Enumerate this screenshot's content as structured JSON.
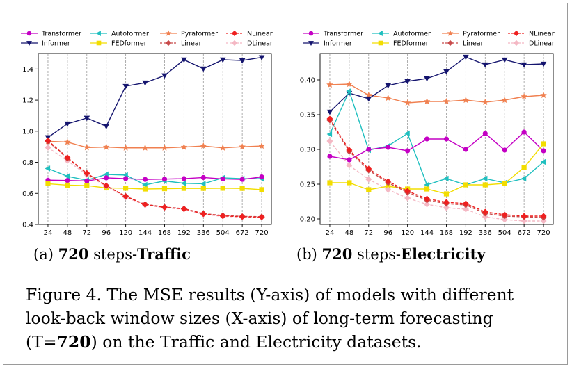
{
  "series_styles": [
    {
      "name": "Transformer",
      "color": "#c400c4",
      "marker": "circle",
      "dash": false
    },
    {
      "name": "Informer",
      "color": "#14146e",
      "marker": "triangle-down",
      "dash": false
    },
    {
      "name": "Autoformer",
      "color": "#1fbfbf",
      "marker": "triangle-left",
      "dash": false
    },
    {
      "name": "FEDformer",
      "color": "#f2dd00",
      "marker": "square",
      "dash": false
    },
    {
      "name": "Pyraformer",
      "color": "#f08050",
      "marker": "star",
      "dash": false
    },
    {
      "name": "Linear",
      "color": "#c84b4b",
      "marker": "diamond",
      "dash": true
    },
    {
      "name": "NLinear",
      "color": "#ee2020",
      "marker": "diamond",
      "dash": true
    },
    {
      "name": "DLinear",
      "color": "#f4b8c4",
      "marker": "diamond",
      "dash": true
    }
  ],
  "chart_data": [
    {
      "type": "line",
      "categories": [
        "24",
        "48",
        "72",
        "96",
        "120",
        "144",
        "168",
        "192",
        "336",
        "504",
        "672",
        "720"
      ],
      "ylim": [
        0.4,
        1.5
      ],
      "yticks": [
        0.4,
        0.6,
        0.8,
        1.0,
        1.2,
        1.4
      ],
      "ytick_labels": [
        "0.4",
        "0.6",
        "0.8",
        "1.0",
        "1.2",
        "1.4"
      ],
      "grid": "vertical dashed",
      "legend": "top, 4 columns",
      "series": [
        {
          "name": "Transformer",
          "values": [
            0.685,
            0.683,
            0.68,
            0.7,
            0.695,
            0.69,
            0.692,
            0.695,
            0.702,
            0.693,
            0.69,
            0.706
          ]
        },
        {
          "name": "Informer",
          "values": [
            0.96,
            1.048,
            1.085,
            1.032,
            1.29,
            1.312,
            1.358,
            1.46,
            1.402,
            1.46,
            1.455,
            1.475
          ]
        },
        {
          "name": "Autoformer",
          "values": [
            0.76,
            0.71,
            0.685,
            0.722,
            0.718,
            0.655,
            0.68,
            0.665,
            0.662,
            0.7,
            0.695,
            0.695
          ]
        },
        {
          "name": "FEDformer",
          "values": [
            0.662,
            0.653,
            0.65,
            0.635,
            0.633,
            0.628,
            0.63,
            0.632,
            0.632,
            0.633,
            0.632,
            0.624
          ]
        },
        {
          "name": "Pyraformer",
          "values": [
            0.935,
            0.93,
            0.895,
            0.898,
            0.893,
            0.893,
            0.893,
            0.898,
            0.905,
            0.893,
            0.9,
            0.905
          ]
        },
        {
          "name": "Linear",
          "values": [
            0.935,
            0.825,
            0.728,
            0.648,
            0.582,
            0.53,
            0.512,
            0.502,
            0.47,
            0.458,
            0.452,
            0.45
          ]
        },
        {
          "name": "NLinear",
          "values": [
            0.94,
            0.83,
            0.73,
            0.65,
            0.58,
            0.528,
            0.51,
            0.5,
            0.468,
            0.455,
            0.45,
            0.447
          ]
        },
        {
          "name": "DLinear",
          "values": [
            0.895,
            0.81,
            0.72,
            0.645,
            0.575,
            0.525,
            0.508,
            0.498,
            0.465,
            0.452,
            0.448,
            0.446
          ]
        }
      ]
    },
    {
      "type": "line",
      "categories": [
        "24",
        "48",
        "72",
        "96",
        "120",
        "144",
        "168",
        "192",
        "336",
        "504",
        "672",
        "720"
      ],
      "ylim": [
        0.192,
        0.438
      ],
      "yticks": [
        0.2,
        0.25,
        0.3,
        0.35,
        0.4
      ],
      "ytick_labels": [
        "0.20",
        "0.25",
        "0.30",
        "0.35",
        "0.40"
      ],
      "grid": "vertical dashed",
      "legend": "top, 4 columns",
      "series": [
        {
          "name": "Transformer",
          "values": [
            0.29,
            0.285,
            0.3,
            0.303,
            0.298,
            0.315,
            0.315,
            0.3,
            0.323,
            0.299,
            0.325,
            0.298
          ]
        },
        {
          "name": "Informer",
          "values": [
            0.354,
            0.381,
            0.373,
            0.392,
            0.398,
            0.402,
            0.412,
            0.433,
            0.422,
            0.429,
            0.422,
            0.423
          ]
        },
        {
          "name": "Autoformer",
          "values": [
            0.322,
            0.384,
            0.299,
            0.305,
            0.323,
            0.249,
            0.258,
            0.249,
            0.258,
            0.252,
            0.258,
            0.282
          ]
        },
        {
          "name": "FEDformer",
          "values": [
            0.252,
            0.252,
            0.242,
            0.247,
            0.243,
            0.243,
            0.236,
            0.249,
            0.249,
            0.251,
            0.274,
            0.308
          ]
        },
        {
          "name": "Pyraformer",
          "values": [
            0.393,
            0.394,
            0.378,
            0.374,
            0.367,
            0.369,
            0.369,
            0.371,
            0.368,
            0.371,
            0.376,
            0.378
          ]
        },
        {
          "name": "Linear",
          "values": [
            0.342,
            0.297,
            0.27,
            0.252,
            0.238,
            0.227,
            0.222,
            0.22,
            0.208,
            0.204,
            0.203,
            0.202
          ]
        },
        {
          "name": "NLinear",
          "values": [
            0.344,
            0.299,
            0.272,
            0.254,
            0.24,
            0.229,
            0.224,
            0.222,
            0.21,
            0.206,
            0.204,
            0.204
          ]
        },
        {
          "name": "DLinear",
          "values": [
            0.312,
            0.277,
            0.257,
            0.242,
            0.23,
            0.221,
            0.216,
            0.214,
            0.203,
            0.199,
            0.197,
            0.197
          ]
        }
      ]
    }
  ],
  "subcaptions": [
    {
      "label": "(a)",
      "number": "720",
      "middle": " steps-",
      "dataset": "Traffic"
    },
    {
      "label": "(b)",
      "number": "720",
      "middle": " steps-",
      "dataset": "Electricity"
    }
  ],
  "caption": {
    "part1": "Figure 4. The MSE results (Y-axis) of models with different look-back window sizes (X-axis) of long-term forecasting (T=",
    "value": "720",
    "part2": ") on the Traffic and Electricity datasets."
  }
}
